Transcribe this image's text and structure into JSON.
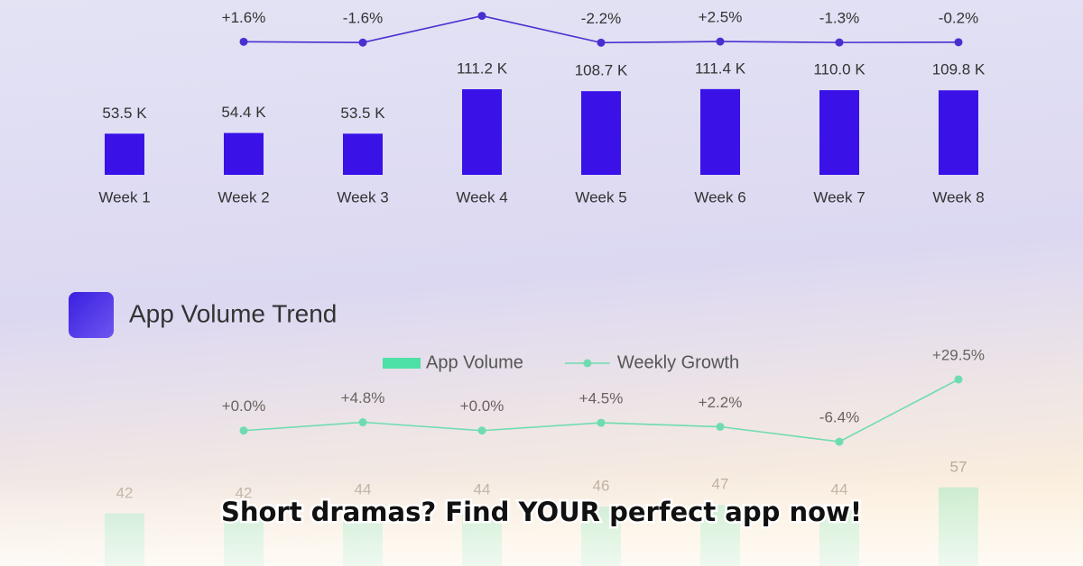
{
  "overlay_text": "Short dramas?  Find YOUR perfect app now!",
  "chart_data": [
    {
      "type": "bar",
      "categories": [
        "Week 1",
        "Week 2",
        "Week 3",
        "Week 4",
        "Week 5",
        "Week 6",
        "Week 7",
        "Week 8"
      ],
      "ylim": [
        0,
        120
      ],
      "y2lim": [
        -60,
        110
      ],
      "series": [
        {
          "color": "#3a12e8",
          "values": [
            53.5,
            54.4,
            53.5,
            111.2,
            108.7,
            111.4,
            110.0,
            109.8
          ],
          "value_labels": [
            "53.5 K",
            "54.4 K",
            "53.5 K",
            "111.2 K",
            "108.7 K",
            "111.4 K",
            "110.0 K",
            "109.8 K"
          ]
        },
        {
          "axis": "y2",
          "color": "#4a2fd0",
          "values": [
            null,
            1.6,
            -1.6,
            107.9,
            -2.2,
            2.5,
            -1.3,
            -0.2
          ],
          "value_labels": [
            null,
            "+1.6%",
            "-1.6%",
            null,
            "-2.2%",
            "+2.5%",
            "-1.3%",
            "-0.2%"
          ]
        }
      ]
    },
    {
      "type": "bar",
      "title": "App Volume Trend",
      "categories": [
        null,
        null,
        null,
        null,
        null,
        null,
        null,
        null
      ],
      "ylim": [
        0,
        60
      ],
      "y2lim": [
        -10,
        30
      ],
      "series": [
        {
          "name": "App Volume",
          "color": "#4fe0a6",
          "values": [
            42,
            42,
            44,
            44,
            46,
            47,
            44,
            57
          ]
        },
        {
          "name": "Weekly Growth",
          "axis": "y2",
          "color": "#6edcb0",
          "values": [
            null,
            0.0,
            4.8,
            0.0,
            4.5,
            2.2,
            -6.4,
            29.5
          ],
          "value_labels": [
            null,
            "+0.0%",
            "+4.8%",
            "+0.0%",
            "+4.5%",
            "+2.2%",
            "-6.4%",
            "+29.5%"
          ]
        }
      ]
    }
  ]
}
